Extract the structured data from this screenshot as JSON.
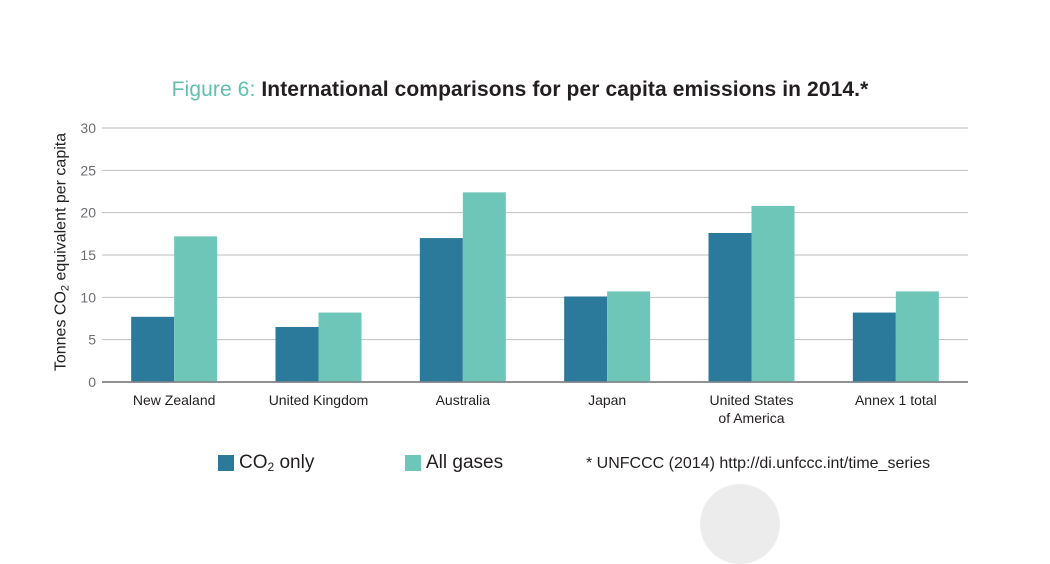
{
  "chart_data": {
    "type": "bar",
    "title_prefix": "Figure 6:",
    "title": "International comparisons for per capita emissions in 2014.*",
    "ylabel_parts": [
      "Tonnes CO",
      "2",
      " equivalent per capita"
    ],
    "xlabel": "",
    "ylim": [
      0,
      30
    ],
    "yticks": [
      "0",
      "5",
      "10",
      "15",
      "20",
      "25",
      "30"
    ],
    "grid": true,
    "legend_position": "bottom",
    "categories": [
      [
        "New Zealand"
      ],
      [
        "United Kingdom"
      ],
      [
        "Australia"
      ],
      [
        "Japan"
      ],
      [
        "United States",
        "of America"
      ],
      [
        "Annex 1 total"
      ]
    ],
    "series": [
      {
        "name_parts": [
          "CO",
          "2",
          " only"
        ],
        "color": "#2b7a9b",
        "values": [
          7.7,
          6.5,
          17.0,
          10.1,
          17.6,
          8.2
        ]
      },
      {
        "name_parts": [
          "All gases"
        ],
        "color": "#6ec6b9",
        "values": [
          17.2,
          8.2,
          22.4,
          10.7,
          20.8,
          10.7
        ]
      }
    ],
    "source_note": "* UNFCCC (2014) http://di.unfccc.int/time_series"
  }
}
